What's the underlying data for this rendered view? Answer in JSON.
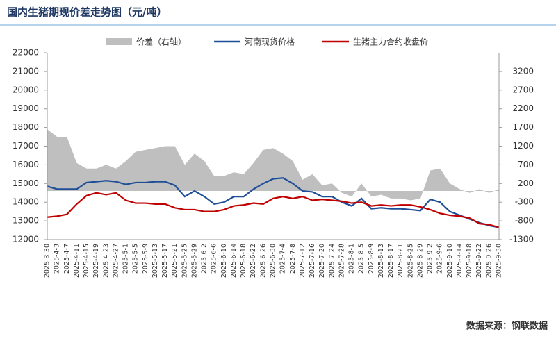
{
  "chart_data": {
    "type": "line",
    "title": "国内生猪期现价差走势图（元/吨）",
    "source": "数据来源：钢联数据",
    "categories": [
      "2025-3-30",
      "2025-4-3",
      "2025-4-7",
      "2025-4-11",
      "2025-4-15",
      "2025-4-19",
      "2025-4-23",
      "2025-4-27",
      "2025-5-1",
      "2025-5-5",
      "2025-5-9",
      "2025-5-13",
      "2025-5-17",
      "2025-5-21",
      "2025-5-25",
      "2025-5-29",
      "2025-6-2",
      "2025-6-6",
      "2025-6-10",
      "2025-6-14",
      "2025-6-18",
      "2025-6-22",
      "2025-6-26",
      "2025-6-30",
      "2025-7-4",
      "2025-7-8",
      "2025-7-12",
      "2025-7-16",
      "2025-7-20",
      "2025-7-24",
      "2025-7-28",
      "2025-8-1",
      "2025-8-5",
      "2025-8-9",
      "2025-8-13",
      "2025-8-17",
      "2025-8-21",
      "2025-8-25",
      "2025-8-29",
      "2025-9-2",
      "2025-9-6",
      "2025-9-10",
      "2025-9-14",
      "2025-9-18",
      "2025-9-22",
      "2025-9-26",
      "2025-9-30"
    ],
    "series": [
      {
        "name": "价差（右轴）",
        "color": "#bfbfbf",
        "kind": "area",
        "axis": "y2",
        "values": [
          1650,
          1450,
          1450,
          750,
          600,
          600,
          700,
          600,
          800,
          1050,
          1100,
          1150,
          1200,
          1200,
          700,
          1000,
          800,
          400,
          400,
          500,
          450,
          750,
          1100,
          1150,
          1000,
          800,
          300,
          450,
          150,
          200,
          -50,
          -150,
          200,
          -150,
          -100,
          -200,
          -200,
          -250,
          -200,
          550,
          600,
          200,
          50,
          -50,
          50,
          -50,
          50
        ]
      },
      {
        "name": "河南现货价格",
        "color": "#1f4e99",
        "kind": "line",
        "values": [
          14850,
          14700,
          14700,
          14700,
          15050,
          15100,
          15150,
          15100,
          14950,
          15050,
          15050,
          15100,
          15100,
          14900,
          14300,
          14600,
          14300,
          13900,
          14000,
          14300,
          14300,
          14700,
          15000,
          15250,
          15300,
          15000,
          14600,
          14550,
          14300,
          14300,
          14000,
          13800,
          14200,
          13650,
          13700,
          13650,
          13650,
          13600,
          13550,
          14150,
          14000,
          13500,
          13300,
          13100,
          12900,
          12750,
          12650
        ]
      },
      {
        "name": "生猪主力合约收盘价",
        "color": "#c00000",
        "kind": "line",
        "values": [
          13200,
          13250,
          13350,
          13900,
          14350,
          14500,
          14400,
          14500,
          14100,
          13950,
          13950,
          13900,
          13900,
          13700,
          13600,
          13600,
          13500,
          13500,
          13600,
          13800,
          13850,
          13950,
          13900,
          14200,
          14300,
          14200,
          14300,
          14100,
          14150,
          14100,
          14050,
          13950,
          14000,
          13800,
          13850,
          13800,
          13850,
          13850,
          13750,
          13600,
          13400,
          13300,
          13250,
          13150,
          12850,
          12800,
          12650
        ]
      }
    ],
    "ylim": [
      12000,
      22000
    ],
    "yticks": [
      12000,
      13000,
      14000,
      15000,
      16000,
      17000,
      18000,
      19000,
      20000,
      21000,
      22000
    ],
    "y2lim": [
      -1300,
      3700
    ],
    "y2ticks": [
      -1300,
      -800,
      -300,
      200,
      700,
      1200,
      1700,
      2200,
      2700,
      3200
    ],
    "legend": "top"
  }
}
